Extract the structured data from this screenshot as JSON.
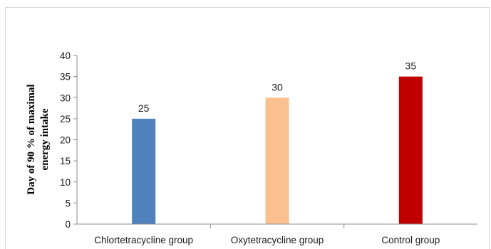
{
  "chart_data": {
    "type": "bar",
    "categories": [
      "Chlortetracycline group",
      "Oxytetracycline group",
      "Control group"
    ],
    "values": [
      25,
      30,
      35
    ],
    "colors": [
      "#4f81bd",
      "#fac090",
      "#c00000"
    ],
    "data_labels": [
      "25",
      "30",
      "35"
    ],
    "ylabel_lines": [
      "Day of  90 % of maximal",
      "energy  intake"
    ],
    "ylim": [
      0,
      40
    ],
    "yticks": [
      0,
      5,
      10,
      15,
      20,
      25,
      30,
      35,
      40
    ],
    "grid": false,
    "legend": "none"
  }
}
